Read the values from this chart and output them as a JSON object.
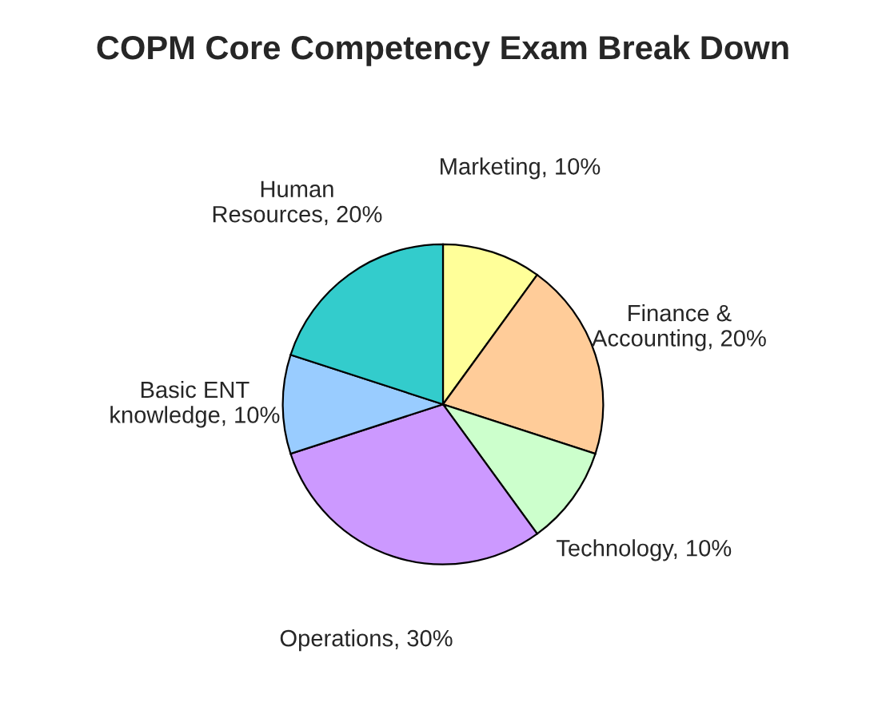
{
  "chart_data": {
    "type": "pie",
    "title": "COPM Core Competency Exam Break Down",
    "categories": [
      "Marketing",
      "Finance & Accounting",
      "Technology",
      "Operations",
      "Basic ENT knowledge",
      "Human Resources"
    ],
    "values": [
      10,
      20,
      10,
      30,
      10,
      20
    ],
    "value_labels": [
      "10%",
      "20%",
      "10%",
      "30%",
      "10%",
      "20%"
    ],
    "colors": [
      "#ffff99",
      "#ffcc99",
      "#ccffcc",
      "#cc99ff",
      "#99ccff",
      "#33cccc"
    ],
    "legend": false
  }
}
